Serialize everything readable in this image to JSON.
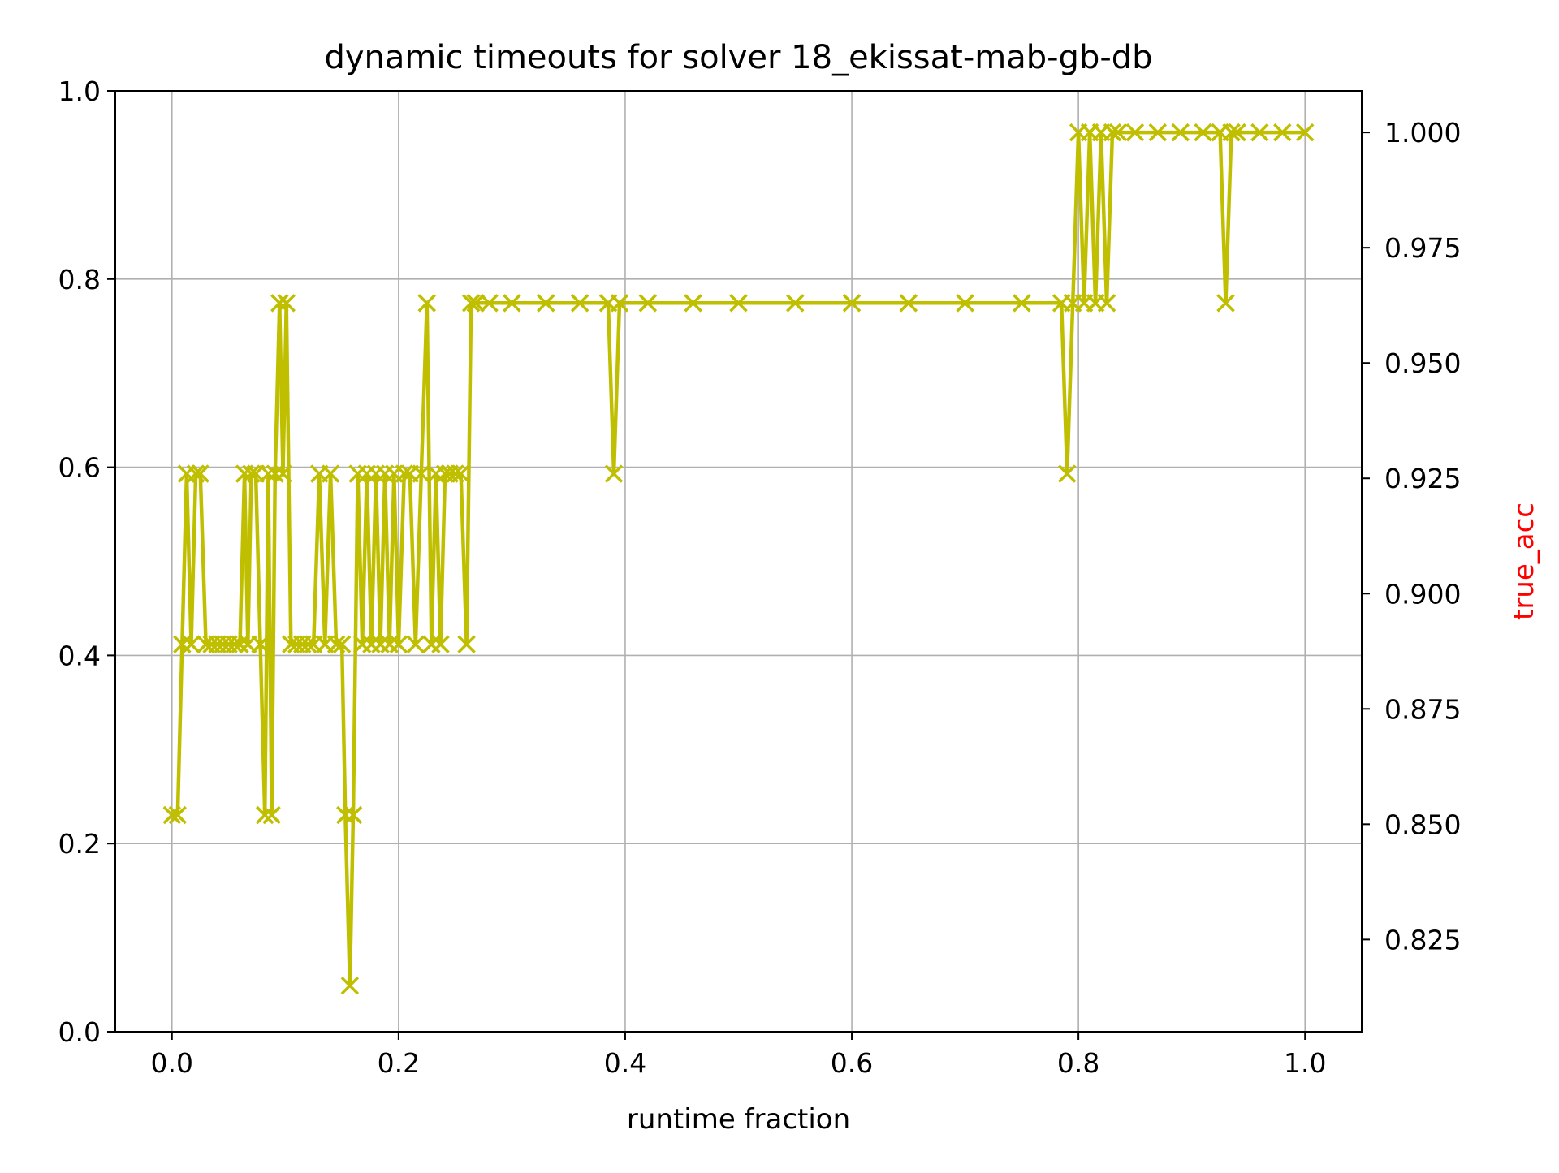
{
  "chart_data": {
    "type": "line",
    "title": "dynamic timeouts for solver 18_ekissat-mab-gb-db",
    "xlabel": "runtime fraction",
    "ylabel": "",
    "y2label": "true_acc",
    "xlim": [
      -0.05,
      1.05
    ],
    "ylim": [
      0.0,
      1.0
    ],
    "y2lim": [
      0.805,
      1.009
    ],
    "xticks": [
      0.0,
      0.2,
      0.4,
      0.6,
      0.8,
      1.0
    ],
    "xtick_labels": [
      "0.0",
      "0.2",
      "0.4",
      "0.6",
      "0.8",
      "1.0"
    ],
    "yticks": [
      0.0,
      0.2,
      0.4,
      0.6,
      0.8,
      1.0
    ],
    "ytick_labels": [
      "0.0",
      "0.2",
      "0.4",
      "0.6",
      "0.8",
      "1.0"
    ],
    "y2ticks": [
      0.825,
      0.85,
      0.875,
      0.9,
      0.925,
      0.95,
      0.975,
      1.0
    ],
    "y2tick_labels": [
      "0.825",
      "0.850",
      "0.875",
      "0.900",
      "0.925",
      "0.950",
      "0.975",
      "1.000"
    ],
    "grid": true,
    "series": [
      {
        "color": "#bfbf00",
        "marker": "x",
        "axis": "right",
        "x": [
          0.0,
          0.005,
          0.009,
          0.013,
          0.017,
          0.021,
          0.025,
          0.03,
          0.035,
          0.04,
          0.045,
          0.05,
          0.055,
          0.06,
          0.064,
          0.067,
          0.07,
          0.074,
          0.078,
          0.082,
          0.085,
          0.088,
          0.091,
          0.095,
          0.098,
          0.101,
          0.105,
          0.11,
          0.115,
          0.12,
          0.125,
          0.13,
          0.135,
          0.14,
          0.145,
          0.15,
          0.153,
          0.157,
          0.16,
          0.164,
          0.168,
          0.172,
          0.176,
          0.18,
          0.184,
          0.188,
          0.192,
          0.196,
          0.2,
          0.205,
          0.21,
          0.215,
          0.22,
          0.225,
          0.229,
          0.233,
          0.237,
          0.241,
          0.245,
          0.25,
          0.255,
          0.26,
          0.264,
          0.268,
          0.28,
          0.3,
          0.33,
          0.36,
          0.385,
          0.39,
          0.395,
          0.42,
          0.46,
          0.5,
          0.55,
          0.6,
          0.65,
          0.7,
          0.75,
          0.785,
          0.79,
          0.795,
          0.8,
          0.805,
          0.81,
          0.815,
          0.82,
          0.825,
          0.83,
          0.835,
          0.85,
          0.87,
          0.89,
          0.91,
          0.925,
          0.93,
          0.935,
          0.94,
          0.96,
          0.98,
          1.0
        ],
        "y": [
          0.852,
          0.852,
          0.889,
          0.926,
          0.889,
          0.926,
          0.926,
          0.889,
          0.889,
          0.889,
          0.889,
          0.889,
          0.889,
          0.889,
          0.926,
          0.889,
          0.926,
          0.926,
          0.889,
          0.852,
          0.926,
          0.852,
          0.926,
          0.963,
          0.926,
          0.963,
          0.889,
          0.889,
          0.889,
          0.889,
          0.889,
          0.926,
          0.889,
          0.926,
          0.889,
          0.889,
          0.852,
          0.815,
          0.852,
          0.926,
          0.889,
          0.926,
          0.889,
          0.926,
          0.889,
          0.926,
          0.889,
          0.926,
          0.889,
          0.926,
          0.926,
          0.889,
          0.926,
          0.963,
          0.889,
          0.926,
          0.889,
          0.926,
          0.926,
          0.926,
          0.926,
          0.889,
          0.963,
          0.963,
          0.963,
          0.963,
          0.963,
          0.963,
          0.963,
          0.926,
          0.963,
          0.963,
          0.963,
          0.963,
          0.963,
          0.963,
          0.963,
          0.963,
          0.963,
          0.963,
          0.926,
          0.963,
          1.0,
          0.963,
          1.0,
          0.963,
          1.0,
          0.963,
          1.0,
          1.0,
          1.0,
          1.0,
          1.0,
          1.0,
          1.0,
          0.963,
          1.0,
          1.0,
          1.0,
          1.0,
          1.0
        ]
      }
    ]
  }
}
